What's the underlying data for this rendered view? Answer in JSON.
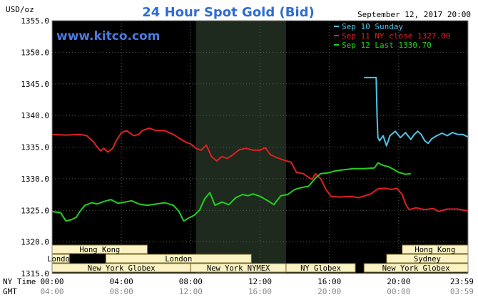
{
  "chart_data": {
    "type": "line",
    "title": "24 Hour Spot Gold (Bid)",
    "ylabel": "USD/oz",
    "watermark": "www.kitco.com",
    "date_stamp": "September 12, 2017 20:00",
    "ylim": [
      1315,
      1355
    ],
    "y_ticks": [
      "1355.0",
      "1350.0",
      "1345.0",
      "1340.0",
      "1335.0",
      "1330.0",
      "1325.0",
      "1320.0",
      "1315.0"
    ],
    "x_range_hours": [
      0,
      24
    ],
    "x_axis_rows": [
      {
        "label": "NY Time",
        "ticks": [
          "00:00",
          "04:00",
          "08:00",
          "12:00",
          "16:00",
          "20:00",
          "23:59"
        ]
      },
      {
        "label": "GMT",
        "ticks": [
          "04:00",
          "08:00",
          "12:00",
          "16:00",
          "20:00",
          "00:00",
          "03:59"
        ]
      }
    ],
    "grid": true,
    "legend_position": "top-right",
    "shaded_region_hours": [
      8.3,
      13.5
    ],
    "series": [
      {
        "name": "Sep 10 Sunday",
        "color": "#4fc3e8",
        "points": [
          [
            18,
            1346
          ],
          [
            18.7,
            1346
          ],
          [
            18.75,
            1340
          ],
          [
            18.8,
            1336.5
          ],
          [
            18.9,
            1336
          ],
          [
            19.1,
            1336.8
          ],
          [
            19.3,
            1335.2
          ],
          [
            19.5,
            1336.8
          ],
          [
            19.8,
            1337.5
          ],
          [
            20.1,
            1336.5
          ],
          [
            20.4,
            1337.3
          ],
          [
            20.7,
            1336.2
          ],
          [
            20.9,
            1337
          ],
          [
            21.1,
            1337.5
          ],
          [
            21.3,
            1337
          ],
          [
            21.5,
            1336
          ],
          [
            21.7,
            1335.6
          ],
          [
            21.9,
            1336.3
          ],
          [
            22.2,
            1336.8
          ],
          [
            22.5,
            1337.2
          ],
          [
            22.8,
            1336.8
          ],
          [
            23.1,
            1337.3
          ],
          [
            23.4,
            1337
          ],
          [
            23.7,
            1337
          ],
          [
            24,
            1336.6
          ]
        ]
      },
      {
        "name": "Sep 11 NY close 1327.00",
        "color": "#e02020",
        "points": [
          [
            0,
            1337
          ],
          [
            0.8,
            1336.9
          ],
          [
            1.6,
            1337
          ],
          [
            2,
            1336.8
          ],
          [
            2.4,
            1335.8
          ],
          [
            2.6,
            1335
          ],
          [
            2.8,
            1334.4
          ],
          [
            3.0,
            1334.8
          ],
          [
            3.2,
            1334.2
          ],
          [
            3.5,
            1334.8
          ],
          [
            3.7,
            1336
          ],
          [
            4.0,
            1337.3
          ],
          [
            4.3,
            1337.6
          ],
          [
            4.7,
            1336.8
          ],
          [
            5.0,
            1337
          ],
          [
            5.2,
            1337.6
          ],
          [
            5.6,
            1338
          ],
          [
            6.0,
            1337.6
          ],
          [
            6.5,
            1337.6
          ],
          [
            7.0,
            1337
          ],
          [
            7.4,
            1336.3
          ],
          [
            7.7,
            1335.8
          ],
          [
            8.0,
            1335.5
          ],
          [
            8.3,
            1334.8
          ],
          [
            8.6,
            1334.5
          ],
          [
            8.9,
            1335.3
          ],
          [
            9.2,
            1333.5
          ],
          [
            9.5,
            1332.8
          ],
          [
            9.8,
            1333.5
          ],
          [
            10.1,
            1333.2
          ],
          [
            10.4,
            1333.7
          ],
          [
            10.8,
            1334.6
          ],
          [
            11.2,
            1334.8
          ],
          [
            11.6,
            1334.5
          ],
          [
            12.0,
            1334.5
          ],
          [
            12.3,
            1334.9
          ],
          [
            12.6,
            1333.8
          ],
          [
            13.0,
            1333.3
          ],
          [
            13.4,
            1332.9
          ],
          [
            13.8,
            1332.6
          ],
          [
            14.1,
            1331
          ],
          [
            14.5,
            1330.8
          ],
          [
            14.8,
            1330.2
          ],
          [
            15.0,
            1329.9
          ],
          [
            15.2,
            1330.8
          ],
          [
            15.5,
            1330
          ],
          [
            15.8,
            1328.3
          ],
          [
            16.1,
            1327.2
          ],
          [
            16.6,
            1327.1
          ],
          [
            17.2,
            1327.2
          ],
          [
            17.7,
            1327
          ],
          [
            18.4,
            1327.6
          ],
          [
            18.8,
            1328.4
          ],
          [
            19.2,
            1328.5
          ],
          [
            19.6,
            1328.3
          ],
          [
            19.9,
            1328.5
          ],
          [
            20.2,
            1327.5
          ],
          [
            20.4,
            1326
          ],
          [
            20.6,
            1325.1
          ],
          [
            21.0,
            1325.4
          ],
          [
            21.5,
            1325.1
          ],
          [
            22.0,
            1325.3
          ],
          [
            22.3,
            1324.8
          ],
          [
            22.8,
            1325.2
          ],
          [
            23.4,
            1325.2
          ],
          [
            24,
            1324.9
          ]
        ]
      },
      {
        "name": "Sep 12 Last 1330.70",
        "color": "#22d022",
        "points": [
          [
            0,
            1324.8
          ],
          [
            0.5,
            1324.6
          ],
          [
            0.8,
            1323.3
          ],
          [
            1.1,
            1323.5
          ],
          [
            1.4,
            1323.9
          ],
          [
            1.6,
            1324.8
          ],
          [
            1.9,
            1325.8
          ],
          [
            2.3,
            1326.2
          ],
          [
            2.6,
            1326
          ],
          [
            3.0,
            1326.4
          ],
          [
            3.4,
            1326.7
          ],
          [
            3.8,
            1326.1
          ],
          [
            4.2,
            1326.3
          ],
          [
            4.6,
            1326.5
          ],
          [
            5.0,
            1326
          ],
          [
            5.5,
            1325.8
          ],
          [
            6.0,
            1326
          ],
          [
            6.5,
            1326.2
          ],
          [
            7.0,
            1325.8
          ],
          [
            7.3,
            1324.9
          ],
          [
            7.6,
            1323.3
          ],
          [
            7.9,
            1323.8
          ],
          [
            8.2,
            1324.2
          ],
          [
            8.5,
            1325
          ],
          [
            8.8,
            1326.8
          ],
          [
            9.1,
            1327.8
          ],
          [
            9.4,
            1325.8
          ],
          [
            9.8,
            1326.3
          ],
          [
            10.2,
            1325.9
          ],
          [
            10.6,
            1327
          ],
          [
            11.0,
            1327.5
          ],
          [
            11.3,
            1327.3
          ],
          [
            11.6,
            1327.6
          ],
          [
            12.0,
            1327.2
          ],
          [
            12.4,
            1326.6
          ],
          [
            12.8,
            1325.9
          ],
          [
            13.2,
            1327.3
          ],
          [
            13.6,
            1327.5
          ],
          [
            14.0,
            1328.3
          ],
          [
            14.4,
            1328.6
          ],
          [
            14.8,
            1328.8
          ],
          [
            15.2,
            1330.1
          ],
          [
            15.5,
            1330.8
          ],
          [
            15.9,
            1330.9
          ],
          [
            16.3,
            1331.2
          ],
          [
            16.8,
            1331.4
          ],
          [
            17.4,
            1331.6
          ],
          [
            18,
            1331.6
          ],
          [
            18.6,
            1331.7
          ],
          [
            18.8,
            1332.5
          ],
          [
            19.1,
            1332.1
          ],
          [
            19.4,
            1331.9
          ],
          [
            19.7,
            1331.5
          ],
          [
            20.0,
            1331
          ],
          [
            20.4,
            1330.7
          ],
          [
            20.7,
            1330.8
          ]
        ]
      }
    ],
    "session_rows": [
      [
        {
          "label": "Hong Kong",
          "start": 0,
          "end": 5.5
        },
        {
          "label": "Hong Kong",
          "start": 20.2,
          "end": 24
        }
      ],
      [
        {
          "label": "London",
          "start": 0,
          "end": 1.0
        },
        {
          "label": "London",
          "start": 3.1,
          "end": 11.5
        },
        {
          "label": "Sydney",
          "start": 19.3,
          "end": 24
        }
      ],
      [
        {
          "label": "New York Globex",
          "start": 0,
          "end": 8.0
        },
        {
          "label": "New York NYMEX",
          "start": 8.0,
          "end": 13.5
        },
        {
          "label": "NY Globex",
          "start": 13.5,
          "end": 17.5
        },
        {
          "label": "New York Globex",
          "start": 18.0,
          "end": 24
        }
      ]
    ]
  }
}
